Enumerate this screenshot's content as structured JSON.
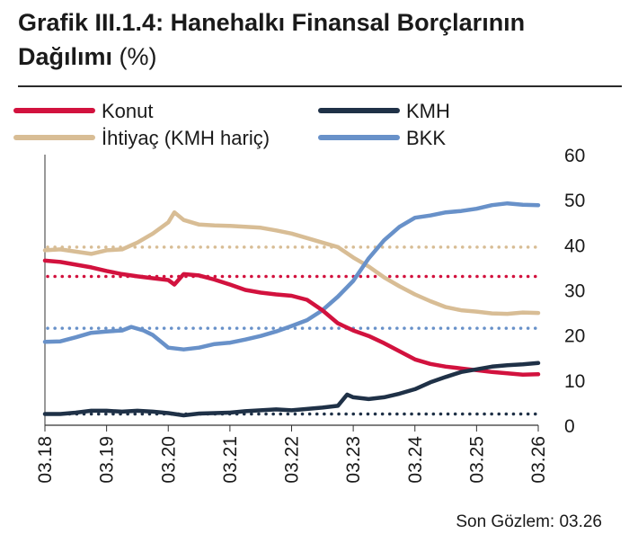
{
  "title_bold": "Grafik III.1.4: Hanehalkı Finansal Borçlarının Dağılımı",
  "title_unit": "(%)",
  "footer": "Son Gözlem: 03.26",
  "colors": {
    "konut": "#d2123e",
    "ihtiyac": "#d8bd95",
    "kmh": "#1f3147",
    "bkk": "#6891c9",
    "tick": "#333333"
  },
  "chart_data": {
    "type": "line",
    "x_ticks": [
      "03.18",
      "03.19",
      "03.20",
      "03.21",
      "03.22",
      "03.23",
      "03.24",
      "03.25",
      "03.26"
    ],
    "x_range": [
      2018.0,
      2026.0
    ],
    "y_ticks": [
      "0",
      "10",
      "20",
      "30",
      "40",
      "50",
      "60"
    ],
    "ylim": [
      0,
      60
    ],
    "y_axis_side": "right",
    "legend_position": "top",
    "grid": false,
    "series": [
      {
        "name": "Konut",
        "key": "konut",
        "x": [
          2018.0,
          2018.25,
          2018.5,
          2018.75,
          2019.0,
          2019.25,
          2019.5,
          2019.75,
          2020.0,
          2020.1,
          2020.25,
          2020.5,
          2020.75,
          2021.0,
          2021.25,
          2021.5,
          2021.75,
          2022.0,
          2022.25,
          2022.5,
          2022.75,
          2023.0,
          2023.25,
          2023.5,
          2023.75,
          2024.0,
          2024.25,
          2024.5,
          2024.75,
          2025.0,
          2025.25,
          2025.5,
          2025.75,
          2026.0
        ],
        "values": [
          36.5,
          36.2,
          35.6,
          35.0,
          34.2,
          33.5,
          33.0,
          32.6,
          32.2,
          31.2,
          33.5,
          33.2,
          32.3,
          31.2,
          30.0,
          29.4,
          29.0,
          28.7,
          27.8,
          25.5,
          22.6,
          21.0,
          19.8,
          18.2,
          16.4,
          14.6,
          13.6,
          13.0,
          12.6,
          12.2,
          11.8,
          11.5,
          11.2,
          11.3
        ],
        "avg": 33.0
      },
      {
        "name": "İhtiyaç (KMH hariç)",
        "key": "ihtiyac",
        "x": [
          2018.0,
          2018.25,
          2018.5,
          2018.75,
          2019.0,
          2019.25,
          2019.5,
          2019.75,
          2020.0,
          2020.1,
          2020.25,
          2020.5,
          2020.75,
          2021.0,
          2021.25,
          2021.5,
          2021.75,
          2022.0,
          2022.25,
          2022.5,
          2022.75,
          2023.0,
          2023.25,
          2023.5,
          2023.75,
          2024.0,
          2024.25,
          2024.5,
          2024.75,
          2025.0,
          2025.25,
          2025.5,
          2025.75,
          2026.0
        ],
        "values": [
          38.8,
          39.0,
          38.5,
          38.0,
          38.8,
          39.0,
          40.5,
          42.5,
          45.0,
          47.2,
          45.5,
          44.5,
          44.3,
          44.2,
          44.0,
          43.8,
          43.2,
          42.5,
          41.5,
          40.5,
          39.5,
          37.2,
          35.2,
          32.8,
          30.8,
          29.0,
          27.5,
          26.2,
          25.5,
          25.2,
          24.8,
          24.7,
          25.0,
          24.9
        ],
        "avg": 39.5
      },
      {
        "name": "KMH",
        "key": "kmh",
        "x": [
          2018.0,
          2018.25,
          2018.5,
          2018.75,
          2019.0,
          2019.25,
          2019.5,
          2019.75,
          2020.0,
          2020.25,
          2020.5,
          2020.75,
          2021.0,
          2021.25,
          2021.5,
          2021.75,
          2022.0,
          2022.25,
          2022.5,
          2022.75,
          2022.9,
          2023.0,
          2023.25,
          2023.5,
          2023.75,
          2024.0,
          2024.25,
          2024.5,
          2024.75,
          2025.0,
          2025.25,
          2025.5,
          2025.75,
          2026.0
        ],
        "values": [
          2.5,
          2.5,
          2.8,
          3.2,
          3.2,
          3.0,
          3.2,
          3.0,
          2.7,
          2.2,
          2.6,
          2.7,
          2.8,
          3.1,
          3.3,
          3.5,
          3.3,
          3.6,
          3.9,
          4.3,
          6.8,
          6.2,
          5.8,
          6.2,
          7.0,
          8.0,
          9.5,
          10.7,
          11.8,
          12.4,
          13.0,
          13.3,
          13.5,
          13.8
        ],
        "avg": 2.5
      },
      {
        "name": "BKK",
        "key": "bkk",
        "x": [
          2018.0,
          2018.25,
          2018.5,
          2018.75,
          2019.0,
          2019.25,
          2019.4,
          2019.6,
          2019.75,
          2020.0,
          2020.25,
          2020.5,
          2020.75,
          2021.0,
          2021.25,
          2021.5,
          2021.75,
          2022.0,
          2022.25,
          2022.5,
          2022.75,
          2023.0,
          2023.25,
          2023.5,
          2023.75,
          2024.0,
          2024.25,
          2024.5,
          2024.75,
          2025.0,
          2025.25,
          2025.5,
          2025.75,
          2026.0
        ],
        "values": [
          18.5,
          18.6,
          19.5,
          20.5,
          20.8,
          21.0,
          21.8,
          21.0,
          20.0,
          17.2,
          16.8,
          17.2,
          18.0,
          18.3,
          19.0,
          19.8,
          20.8,
          22.0,
          23.3,
          25.5,
          28.5,
          32.0,
          37.0,
          41.0,
          44.0,
          46.0,
          46.5,
          47.2,
          47.5,
          48.0,
          48.8,
          49.2,
          48.9,
          48.8
        ],
        "avg": 21.5
      }
    ]
  }
}
